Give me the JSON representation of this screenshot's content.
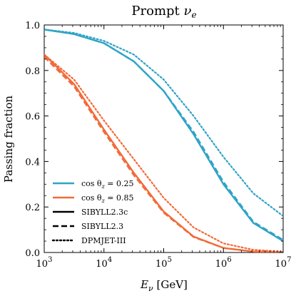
{
  "chart_data": {
    "type": "line",
    "title": "Prompt",
    "title_symbol": "ν",
    "title_subscript": "e",
    "xlabel_symbol": "E",
    "xlabel_subscript": "ν",
    "xlabel_unit": "[GeV]",
    "ylabel": "Passing fraction",
    "x_scale": "log",
    "xlim": [
      1000,
      10000000
    ],
    "ylim": [
      0.0,
      1.0
    ],
    "x_ticks": [
      {
        "value": 1000,
        "base": "10",
        "exp": "3"
      },
      {
        "value": 10000,
        "base": "10",
        "exp": "4"
      },
      {
        "value": 100000,
        "base": "10",
        "exp": "5"
      },
      {
        "value": 1000000,
        "base": "10",
        "exp": "6"
      },
      {
        "value": 10000000,
        "base": "10",
        "exp": "7"
      }
    ],
    "y_ticks": [
      "0.0",
      "0.2",
      "0.4",
      "0.6",
      "0.8",
      "1.0"
    ],
    "y_tick_values": [
      0.0,
      0.2,
      0.4,
      0.6,
      0.8,
      1.0
    ],
    "legend_position": "lower-left",
    "legend": [
      {
        "label_pre": "cos θ",
        "label_sub": "z",
        "label_post": " = 0.25",
        "kind": "color",
        "color": "#2fa4c6"
      },
      {
        "label_pre": "cos θ",
        "label_sub": "z",
        "label_post": " = 0.85",
        "kind": "color",
        "color": "#f26b3a"
      },
      {
        "label": "SIBYLL2.3c",
        "kind": "style",
        "style": "solid"
      },
      {
        "label": "SIBYLL2.3",
        "kind": "style",
        "style": "dashed"
      },
      {
        "label": "DPMJET-III",
        "kind": "style",
        "style": "dotted"
      }
    ],
    "series": [
      {
        "cos_theta": 0.25,
        "model": "SIBYLL2.3c",
        "color": "#2fa4c6",
        "style": "solid",
        "x": [
          1000,
          3162,
          10000,
          31623,
          100000,
          316228,
          1000000,
          3162278,
          10000000
        ],
        "y": [
          0.98,
          0.96,
          0.92,
          0.84,
          0.71,
          0.52,
          0.3,
          0.13,
          0.05
        ]
      },
      {
        "cos_theta": 0.25,
        "model": "SIBYLL2.3",
        "color": "#2fa4c6",
        "style": "dashed",
        "x": [
          1000,
          3162,
          10000,
          31623,
          100000,
          316228,
          1000000,
          3162278,
          10000000
        ],
        "y": [
          0.98,
          0.96,
          0.92,
          0.84,
          0.71,
          0.53,
          0.31,
          0.135,
          0.055
        ]
      },
      {
        "cos_theta": 0.25,
        "model": "DPMJET-III",
        "color": "#2fa4c6",
        "style": "dotted",
        "x": [
          1000,
          3162,
          10000,
          31623,
          100000,
          316228,
          1000000,
          3162278,
          10000000
        ],
        "y": [
          0.98,
          0.965,
          0.93,
          0.87,
          0.76,
          0.6,
          0.42,
          0.26,
          0.16
        ]
      },
      {
        "cos_theta": 0.85,
        "model": "SIBYLL2.3c",
        "color": "#f26b3a",
        "style": "solid",
        "x": [
          1000,
          3162,
          10000,
          31623,
          100000,
          316228,
          1000000,
          3162278,
          10000000
        ],
        "y": [
          0.87,
          0.74,
          0.54,
          0.35,
          0.18,
          0.07,
          0.02,
          0.004,
          0.0
        ]
      },
      {
        "cos_theta": 0.85,
        "model": "SIBYLL2.3",
        "color": "#f26b3a",
        "style": "dashed",
        "x": [
          1000,
          3162,
          10000,
          31623,
          100000,
          316228,
          1000000,
          3162278,
          10000000
        ],
        "y": [
          0.86,
          0.73,
          0.53,
          0.34,
          0.175,
          0.068,
          0.02,
          0.004,
          0.0
        ]
      },
      {
        "cos_theta": 0.85,
        "model": "DPMJET-III",
        "color": "#f26b3a",
        "style": "dotted",
        "x": [
          1000,
          3162,
          10000,
          31623,
          100000,
          316228,
          1000000,
          3162278,
          10000000
        ],
        "y": [
          0.87,
          0.76,
          0.58,
          0.41,
          0.24,
          0.11,
          0.04,
          0.012,
          0.003
        ]
      }
    ]
  }
}
